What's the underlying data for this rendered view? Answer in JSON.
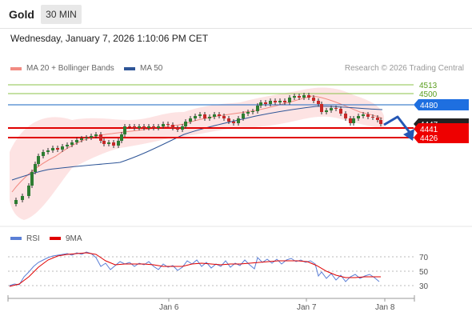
{
  "header": {
    "title": "Gold",
    "timeframe": "30 MIN"
  },
  "datetime": "Wednesday, January 7, 2026 1:10:06 PM CET",
  "legend": {
    "items": [
      {
        "label": "MA 20 + Bollinger Bands",
        "color": "#f28b82"
      },
      {
        "label": "MA 50",
        "color": "#2e5597"
      }
    ]
  },
  "source_credit": "Research © 2026 Trading Central",
  "levels": {
    "resistances": [
      {
        "value": "4513",
        "color": "#7cb342"
      },
      {
        "value": "4500",
        "color": "#7cb342"
      }
    ],
    "pivot": {
      "value": "4480",
      "color": "#1565c0",
      "bg": "#1e6fe0"
    },
    "current_price": {
      "value": "4447",
      "bg": "#222222"
    },
    "supports": [
      {
        "value": "4441",
        "color": "#e00000",
        "bg": "#ee0000"
      },
      {
        "value": "4426",
        "color": "#e00000",
        "bg": "#ee0000"
      }
    ]
  },
  "rsi_legend": {
    "items": [
      {
        "label": "RSI",
        "color": "#5b7fd6"
      },
      {
        "label": "9MA",
        "color": "#e00000"
      }
    ]
  },
  "rsi_levels": [
    "70",
    "50",
    "30"
  ],
  "x_axis": {
    "labels": [
      "Jan 6",
      "Jan 7",
      "Jan 8"
    ]
  },
  "chart_data": {
    "type": "candlestick",
    "instrument": "Gold",
    "interval": "30 MIN",
    "price_levels": [
      4513,
      4500,
      4480,
      4447,
      4441,
      4426
    ],
    "rsi_levels": [
      70,
      50,
      30
    ],
    "x_labels": [
      "Jan 6",
      "Jan 7",
      "Jan 8"
    ],
    "series": [
      {
        "name": "MA 20 + Bollinger Bands",
        "color": "#f28b82"
      },
      {
        "name": "MA 50",
        "color": "#2e5597"
      },
      {
        "name": "RSI",
        "color": "#5b7fd6"
      },
      {
        "name": "9MA",
        "color": "#e00000"
      }
    ]
  }
}
